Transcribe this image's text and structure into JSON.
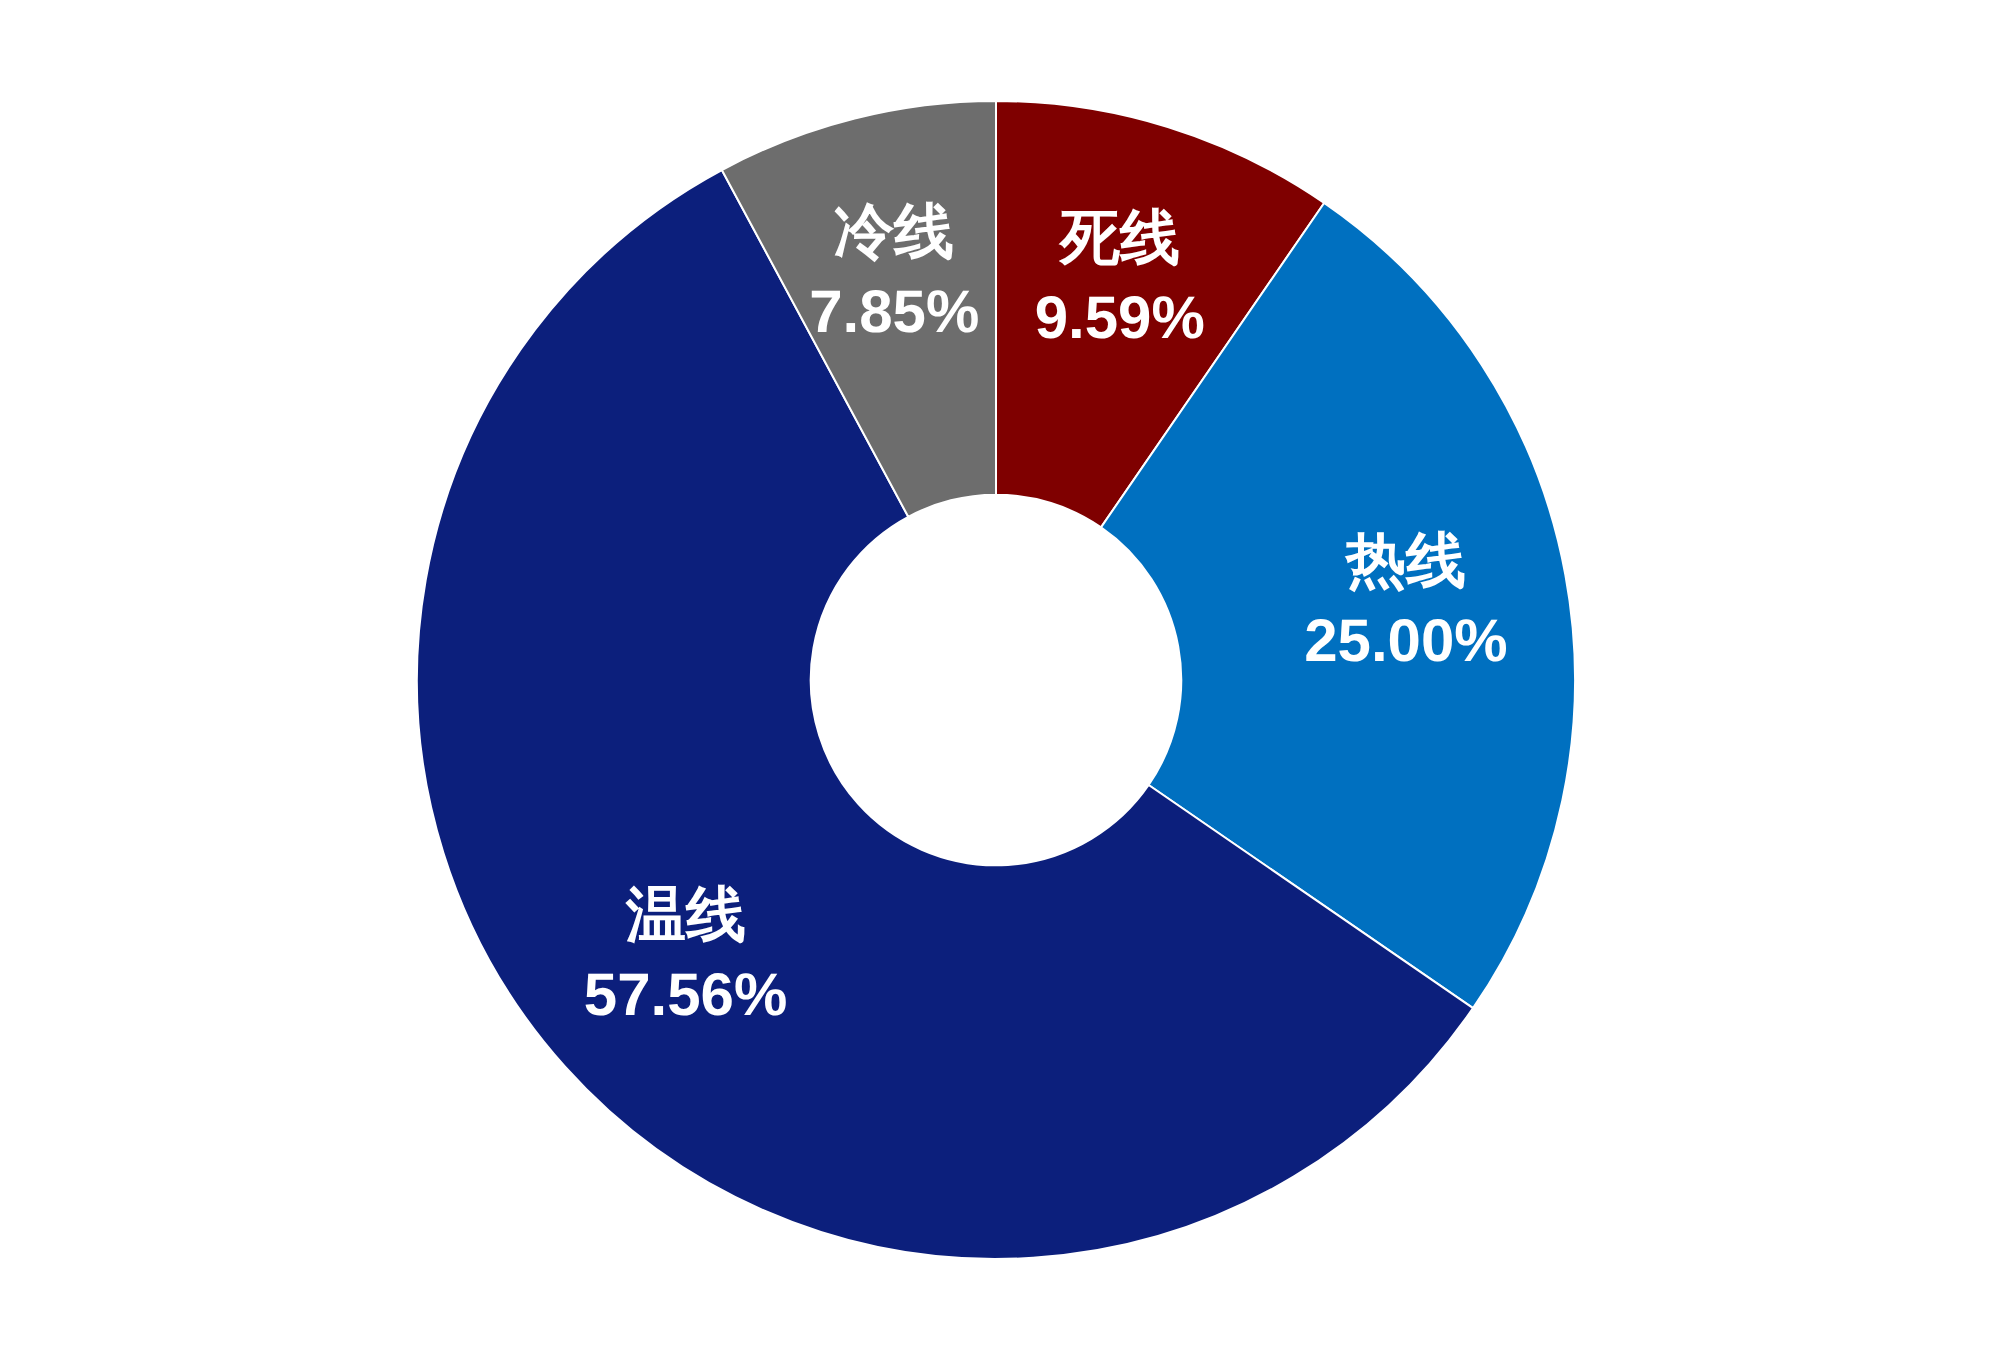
{
  "chart_data": {
    "type": "donut",
    "categories": [
      "死线",
      "热线",
      "温线",
      "冷线"
    ],
    "values": [
      9.59,
      25.0,
      57.56,
      7.85
    ],
    "value_labels": [
      "9.59%",
      "25.00%",
      "57.56%",
      "7.85%"
    ],
    "colors": [
      "#7f0000",
      "#0070c0",
      "#0c1f7c",
      "#6d6d6d"
    ],
    "legend": false
  }
}
